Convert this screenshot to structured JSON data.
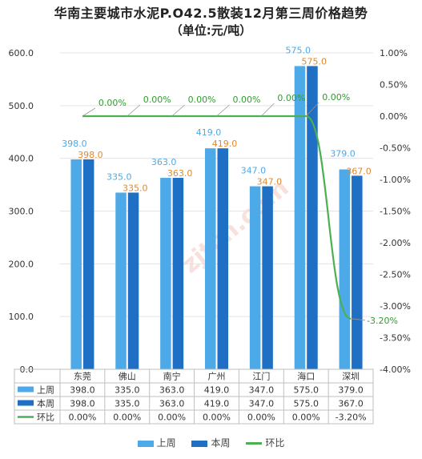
{
  "chart_data": {
    "type": "bar",
    "title": "华南主要城市水泥P.O42.5散装12月第三周价格趋势",
    "subtitle": "（单位:元/吨）",
    "categories": [
      "东莞",
      "佛山",
      "南宁",
      "广州",
      "江门",
      "海口",
      "深圳"
    ],
    "series": [
      {
        "name": "上周",
        "type": "bar",
        "axis": "left",
        "values": [
          398.0,
          335.0,
          363.0,
          419.0,
          347.0,
          575.0,
          379.0
        ]
      },
      {
        "name": "本周",
        "type": "bar",
        "axis": "left",
        "values": [
          398.0,
          335.0,
          363.0,
          419.0,
          347.0,
          575.0,
          367.0
        ]
      },
      {
        "name": "环比",
        "type": "line",
        "axis": "right",
        "values": [
          0.0,
          0.0,
          0.0,
          0.0,
          0.0,
          0.0,
          -3.2
        ]
      }
    ],
    "bar_labels": {
      "上周": [
        "398.0",
        "335.0",
        "363.0",
        "419.0",
        "347.0",
        "575.0",
        "379.0"
      ],
      "本周": [
        "398.0",
        "335.0",
        "363.0",
        "419.0",
        "347.0",
        "575.0",
        "367.0"
      ]
    },
    "line_labels": [
      "0.00%",
      "0.00%",
      "0.00%",
      "0.00%",
      "0.00%",
      "0.00%",
      "-3.20%"
    ],
    "ylim_left": [
      0,
      600
    ],
    "yticks_left": [
      "0.0",
      "100.0",
      "200.0",
      "300.0",
      "400.0",
      "500.0",
      "600.0"
    ],
    "ylim_right": [
      -4.0,
      1.0
    ],
    "yticks_right": [
      "-4.00%",
      "-3.50%",
      "-3.00%",
      "-2.50%",
      "-2.00%",
      "-1.50%",
      "-1.00%",
      "-0.50%",
      "0.00%",
      "0.50%",
      "1.00%"
    ],
    "data_table": {
      "rows": [
        {
          "label": "上周",
          "cells": [
            "398.0",
            "335.0",
            "363.0",
            "419.0",
            "347.0",
            "575.0",
            "379.0"
          ]
        },
        {
          "label": "本周",
          "cells": [
            "398.0",
            "335.0",
            "363.0",
            "419.0",
            "347.0",
            "575.0",
            "367.0"
          ]
        },
        {
          "label": "环比",
          "cells": [
            "0.00%",
            "0.00%",
            "0.00%",
            "0.00%",
            "0.00%",
            "0.00%",
            "-3.20%"
          ]
        }
      ]
    },
    "legend": [
      "上周",
      "本周",
      "环比"
    ],
    "legend_position": "bottom",
    "grid": true,
    "colors": {
      "上周": "#4ea9e8",
      "本周": "#1f6fc4",
      "环比": "#4caf50",
      "label_last_week": "#4ea9e8",
      "label_this_week": "#e08a2e",
      "label_ratio": "#2e9e2e",
      "grid": "#e3e3e3",
      "axis_text": "#333333"
    },
    "watermark": "zjtcn.com"
  }
}
